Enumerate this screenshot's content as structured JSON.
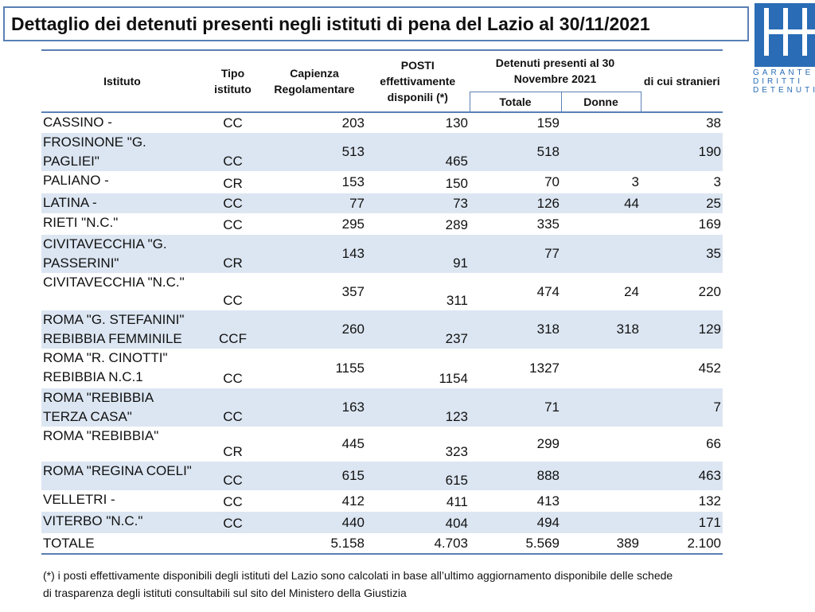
{
  "header": {
    "title": "Dettaglio dei detenuti presenti negli istituti di pena del Lazio al 30/11/2021"
  },
  "logo": {
    "lines": [
      "GARANTE",
      "DIRITTI",
      "DETENUTI"
    ]
  },
  "table": {
    "header": [
      "Istituto",
      "Tipo istituto",
      "Capienza Regolamentare",
      "POSTI effettivamente disponili (*)",
      "Detenuti presenti al  30 Novembre 2021",
      "di cui stranieri"
    ],
    "subheader": [
      "Totale",
      "Donne"
    ],
    "rows": [
      [
        [
          "CASSINO -"
        ],
        "CC",
        203,
        130,
        159,
        null,
        38
      ],
      [
        [
          "FROSINONE \"G.",
          "PAGLIEI\""
        ],
        "CC",
        513,
        465,
        518,
        null,
        190
      ],
      [
        [
          "PALIANO -"
        ],
        "CR",
        153,
        150,
        70,
        3,
        3
      ],
      [
        [
          "LATINA -"
        ],
        "CC",
        77,
        73,
        126,
        44,
        25
      ],
      [
        [
          "RIETI \"N.C.\""
        ],
        "CC",
        295,
        289,
        335,
        null,
        169
      ],
      [
        [
          "CIVITAVECCHIA \"G.",
          "PASSERINI\""
        ],
        "CR",
        143,
        91,
        77,
        null,
        35
      ],
      [
        [
          "CIVITAVECCHIA \"N.C.\""
        ],
        "CC",
        357,
        311,
        474,
        24,
        220
      ],
      [
        [
          "ROMA \"G. STEFANINI\"",
          "REBIBBIA FEMMINILE"
        ],
        "CCF",
        260,
        237,
        318,
        318,
        129
      ],
      [
        [
          "ROMA \"R. CINOTTI\"",
          "REBIBBIA N.C.1"
        ],
        "CC",
        1155,
        1154,
        1327,
        null,
        452
      ],
      [
        [
          "ROMA \"REBIBBIA",
          "TERZA CASA\""
        ],
        "CC",
        163,
        123,
        71,
        null,
        7
      ],
      [
        [
          "ROMA \"REBIBBIA\""
        ],
        "CR",
        445,
        323,
        299,
        null,
        66
      ],
      [
        [
          "ROMA \"REGINA COELI\""
        ],
        "CC",
        615,
        615,
        888,
        null,
        463
      ],
      [
        [
          "VELLETRI -"
        ],
        "CC",
        412,
        411,
        413,
        null,
        132
      ],
      [
        [
          "VITERBO \"N.C.\""
        ],
        "CC",
        440,
        404,
        494,
        null,
        171
      ]
    ],
    "total": [
      "TOTALE",
      null,
      "5.158",
      "4.703",
      "5.569",
      "389",
      "2.100"
    ]
  },
  "footnote": [
    "(*) i posti effettivamente disponibili degli istituti del Lazio sono calcolati in base all’ultimo aggiornamento disponibile delle schede",
    "di trasparenza degli istituti consultabili sul sito del Ministero della Giustizia"
  ]
}
